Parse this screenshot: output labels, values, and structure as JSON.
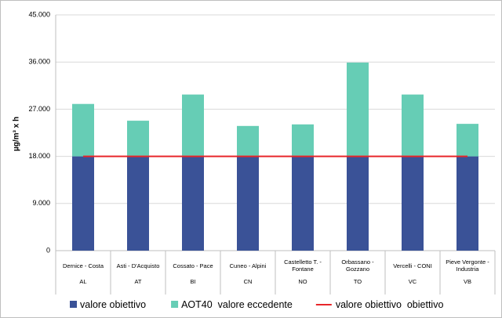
{
  "chart_data": {
    "type": "bar",
    "stacked": true,
    "y_label": "µg/m³ x h",
    "categories": [
      "Dernice - Costa",
      "Asti - D'Acquisto",
      "Cossato - Pace",
      "Cuneo - Alpini",
      "Castelletto T. - Fontane",
      "Orbassano - Gozzano",
      "Vercelli - CONI",
      "Pieve Vergonte - Industria"
    ],
    "groups": [
      "AL",
      "AT",
      "BI",
      "CN",
      "NO",
      "TO",
      "VC",
      "VB"
    ],
    "series": [
      {
        "name": "valore obiettivo",
        "type": "bar",
        "color": "#3a5297",
        "values": [
          18000,
          18000,
          18000,
          18000,
          18000,
          18000,
          18000,
          18000
        ]
      },
      {
        "name": "AOT40  valore eccedente",
        "type": "bar",
        "color": "#66cdb5",
        "values": [
          10000,
          6800,
          11800,
          5800,
          6100,
          17900,
          11800,
          6200
        ]
      },
      {
        "name": "valore obiettivo  obiettivo",
        "type": "line",
        "color": "#e8262a",
        "values": [
          18000,
          18000,
          18000,
          18000,
          18000,
          18000,
          18000,
          18000
        ]
      }
    ],
    "ylim": [
      0,
      45000
    ],
    "yticks": [
      0,
      {
        "value": 9000,
        "label": "9.000"
      },
      {
        "value": 18000,
        "label": "18.000"
      },
      {
        "value": 27000,
        "label": "27.000"
      },
      {
        "value": 36000,
        "label": "36.000"
      },
      {
        "value": 45000,
        "label": "45.000"
      }
    ],
    "grid": true
  }
}
